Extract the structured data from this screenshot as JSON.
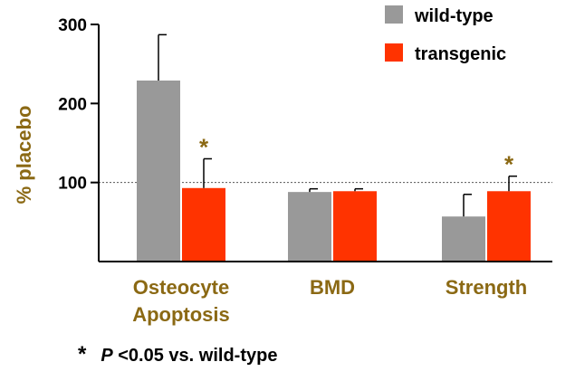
{
  "chart_data": {
    "type": "bar",
    "title": "",
    "xlabel": "",
    "ylabel": "% placebo",
    "ylim": [
      0,
      300
    ],
    "yticks": [
      100,
      200,
      300
    ],
    "reference_line": 100,
    "categories": [
      "Osteocyte Apoptosis",
      "BMD",
      "Strength"
    ],
    "category_lines": [
      [
        "Osteocyte",
        "Apoptosis"
      ],
      [
        "BMD"
      ],
      [
        "Strength"
      ]
    ],
    "series": [
      {
        "name": "wild-type",
        "color": "#999999",
        "values": [
          229,
          88,
          57
        ],
        "error": [
          58,
          4,
          28
        ],
        "significant": [
          false,
          false,
          false
        ]
      },
      {
        "name": "transgenic",
        "color": "#ff3300",
        "values": [
          93,
          89,
          89
        ],
        "error": [
          37,
          3,
          19
        ],
        "significant": [
          true,
          false,
          true
        ]
      }
    ],
    "legend_position": "top-right",
    "significance_marker": "*",
    "footnote": {
      "marker": "*",
      "p": "P",
      "rest": "<0.05 vs. wild-type"
    },
    "colors": {
      "label": "#8b6914",
      "axis": "#000000"
    }
  }
}
